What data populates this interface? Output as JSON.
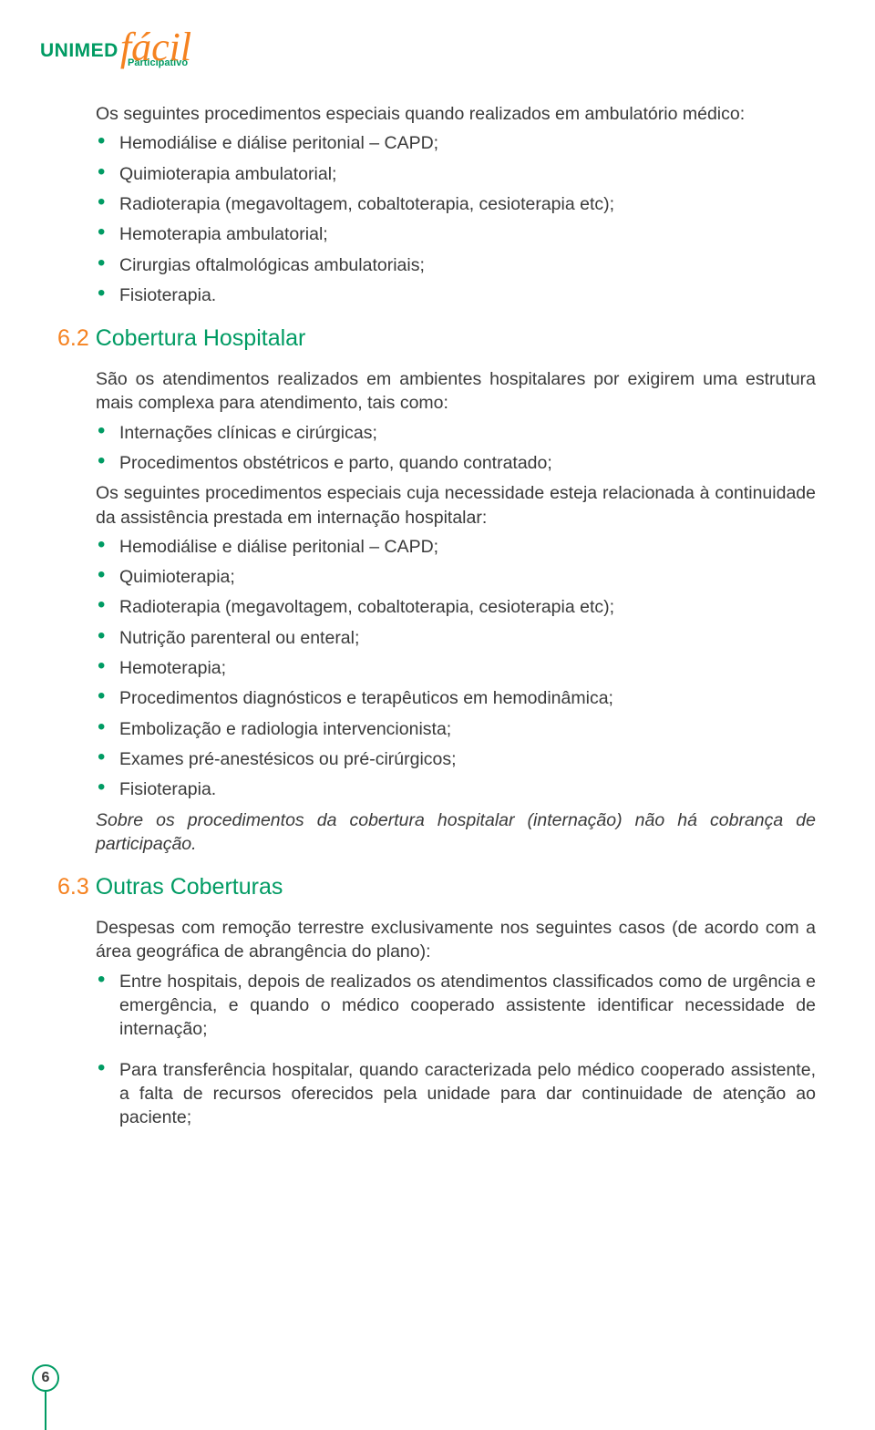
{
  "colors": {
    "green": "#009b63",
    "orange": "#f58220",
    "text": "#3a3a3a",
    "bullet": "#009b63"
  },
  "logo": {
    "unimed": "UNIMED",
    "facil": "fácil",
    "participativo": "Participativo"
  },
  "intro_para": "Os seguintes procedimentos especiais quando realizados em ambulatório médico:",
  "intro_bullets": [
    "Hemodiálise e diálise peritonial – CAPD;",
    "Quimioterapia ambulatorial;",
    "Radioterapia (megavoltagem, cobaltoterapia, cesioterapia etc);",
    "Hemoterapia ambulatorial;",
    "Cirurgias oftalmológicas ambulatoriais;",
    "Fisioterapia."
  ],
  "section62": {
    "number": "6.2",
    "title": "Cobertura Hospitalar",
    "para1": "São os atendimentos realizados em ambientes hospitalares por exigirem uma estrutura mais complexa para atendimento, tais como:",
    "bullets1": [
      "Internações clínicas e cirúrgicas;",
      "Procedimentos obstétricos e parto, quando contratado;"
    ],
    "para2": "Os seguintes procedimentos especiais cuja necessidade esteja relacionada à continuidade da assistência prestada em internação hospitalar:",
    "bullets2": [
      "Hemodiálise e diálise peritonial – CAPD;",
      "Quimioterapia;",
      "Radioterapia (megavoltagem, cobaltoterapia, cesioterapia etc);",
      "Nutrição parenteral ou enteral;",
      "Hemoterapia;",
      "Procedimentos diagnósticos e terapêuticos em hemodinâmica;",
      "Embolização e radiologia intervencionista;",
      "Exames pré-anestésicos ou pré-cirúrgicos;",
      "Fisioterapia."
    ],
    "note": "Sobre os procedimentos da cobertura hospitalar (internação) não há cobrança de participação."
  },
  "section63": {
    "number": "6.3",
    "title": "Outras Coberturas",
    "para1": "Despesas com remoção terrestre exclusivamente nos seguintes casos (de acordo com a área geográfica de abrangência do plano):",
    "bullets1": [
      "Entre hospitais, depois de realizados os atendimentos classificados como de urgência e emergência, e quando o médico cooperado assistente identificar necessidade de internação;",
      "Para transferência hospitalar, quando caracterizada pelo médico cooperado assistente, a falta de recursos oferecidos pela unidade para dar continuidade de atenção ao paciente;"
    ]
  },
  "page_number": "6"
}
